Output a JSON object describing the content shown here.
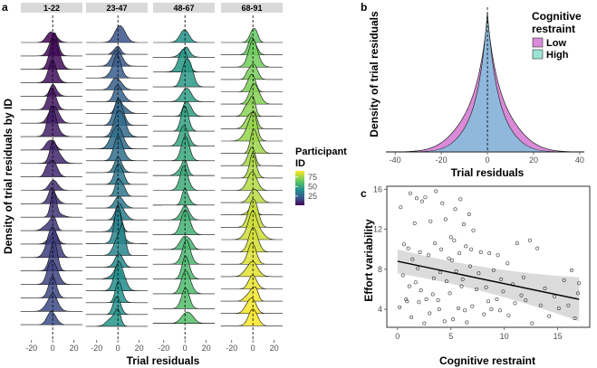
{
  "chart_data": [
    {
      "panel": "a",
      "type": "ridgeline",
      "facets": [
        "1-22",
        "23-47",
        "48-67",
        "68-91"
      ],
      "xlabel": "Trial residuals",
      "ylabel": "Density of trial residuals by ID",
      "xticks": [
        -20,
        0,
        20
      ],
      "xlim": [
        -30,
        28
      ],
      "ridges_per_facet": [
        22,
        25,
        20,
        24
      ],
      "ref_line": 0,
      "colorbar": {
        "title": "Participant ID",
        "ticks": [
          25,
          50,
          75
        ],
        "range": [
          1,
          91
        ],
        "colors": [
          "#440154",
          "#46327e",
          "#365c8d",
          "#277f8e",
          "#1fa187",
          "#4ac16d",
          "#a0da39",
          "#fde725"
        ]
      }
    },
    {
      "panel": "b",
      "type": "density",
      "xlabel": "Trial residuals",
      "ylabel": "Density of trial residuals",
      "xticks": [
        -40,
        -20,
        0,
        20,
        40
      ],
      "xlim": [
        -44,
        42
      ],
      "ref_line": 0,
      "legend_title": "Cognitive restraint",
      "series": [
        {
          "name": "Low",
          "color": "#d98ad8",
          "center": 0,
          "scale": 5.6,
          "tail_weight": 0.35,
          "tail_scale": 11,
          "peak": 0.96
        },
        {
          "name": "High",
          "color": "#9be3d4",
          "center": 0,
          "scale": 5.0,
          "tail_weight": 0.25,
          "tail_scale": 9,
          "peak": 1.0
        }
      ]
    },
    {
      "panel": "c",
      "type": "scatter",
      "xlabel": "Cognitive restraint",
      "ylabel": "Effort variability",
      "xticks": [
        0,
        5,
        10,
        15
      ],
      "yticks": [
        4,
        8,
        12,
        16
      ],
      "xlim": [
        -1,
        18
      ],
      "ylim": [
        2.2,
        16.3
      ],
      "fit": {
        "x": [
          0,
          17
        ],
        "y": [
          8.8,
          5.0
        ],
        "ci_low_at": [
          7.6,
          2.8
        ],
        "ci_high_at": [
          10.0,
          7.2
        ]
      },
      "points": [
        [
          0.3,
          14.2
        ],
        [
          1.2,
          15.6
        ],
        [
          1.6,
          12.6
        ],
        [
          1.8,
          15.1
        ],
        [
          2.3,
          14.8
        ],
        [
          2.6,
          15.2
        ],
        [
          3.1,
          12.8
        ],
        [
          3.6,
          15.8
        ],
        [
          4.2,
          14.6
        ],
        [
          4.5,
          13.0
        ],
        [
          5.0,
          11.2
        ],
        [
          5.4,
          14.0
        ],
        [
          5.9,
          15.0
        ],
        [
          6.2,
          12.5
        ],
        [
          6.7,
          13.5
        ],
        [
          7.1,
          11.9
        ],
        [
          0.6,
          10.5
        ],
        [
          1.0,
          10.1
        ],
        [
          1.4,
          9.0
        ],
        [
          2.1,
          9.7
        ],
        [
          2.9,
          9.4
        ],
        [
          3.5,
          10.6
        ],
        [
          4.1,
          10.0
        ],
        [
          4.8,
          9.1
        ],
        [
          5.3,
          10.9
        ],
        [
          5.8,
          9.6
        ],
        [
          6.4,
          10.3
        ],
        [
          6.9,
          10.0
        ],
        [
          7.8,
          9.7
        ],
        [
          8.6,
          9.6
        ],
        [
          9.4,
          9.4
        ],
        [
          10.3,
          8.6
        ],
        [
          11.2,
          10.6
        ],
        [
          12.4,
          10.9
        ],
        [
          13.1,
          10.1
        ],
        [
          0.2,
          4.2
        ],
        [
          0.8,
          5.0
        ],
        [
          1.3,
          3.2
        ],
        [
          1.7,
          6.7
        ],
        [
          2.0,
          4.7
        ],
        [
          2.5,
          2.6
        ],
        [
          3.0,
          3.6
        ],
        [
          3.3,
          5.5
        ],
        [
          3.9,
          4.0
        ],
        [
          4.4,
          2.8
        ],
        [
          4.9,
          5.6
        ],
        [
          5.2,
          3.0
        ],
        [
          5.7,
          4.1
        ],
        [
          6.0,
          6.3
        ],
        [
          6.5,
          2.7
        ],
        [
          7.0,
          4.3
        ],
        [
          7.4,
          6.0
        ],
        [
          8.1,
          3.5
        ],
        [
          8.8,
          4.0
        ],
        [
          9.3,
          5.0
        ],
        [
          9.9,
          5.8
        ],
        [
          10.4,
          3.4
        ],
        [
          11.0,
          4.6
        ],
        [
          11.6,
          5.4
        ],
        [
          12.6,
          2.6
        ],
        [
          13.4,
          4.4
        ],
        [
          14.2,
          3.3
        ],
        [
          15.1,
          4.1
        ],
        [
          16.3,
          7.9
        ],
        [
          16.6,
          3.1
        ],
        [
          17.0,
          6.6
        ],
        [
          0.5,
          7.4
        ],
        [
          1.1,
          6.3
        ],
        [
          1.9,
          8.1
        ],
        [
          2.7,
          5.0
        ],
        [
          3.4,
          7.1
        ],
        [
          4.0,
          7.7
        ],
        [
          4.6,
          6.8
        ],
        [
          5.5,
          7.8
        ],
        [
          6.1,
          7.0
        ],
        [
          6.8,
          8.3
        ],
        [
          7.6,
          7.6
        ],
        [
          8.3,
          6.2
        ],
        [
          9.0,
          7.9
        ],
        [
          9.7,
          7.0
        ],
        [
          10.8,
          6.5
        ],
        [
          11.8,
          7.2
        ],
        [
          13.8,
          6.1
        ],
        [
          15.6,
          6.9
        ],
        [
          16.9,
          5.6
        ],
        [
          0.9,
          4.8
        ],
        [
          2.2,
          5.9
        ],
        [
          3.8,
          4.9
        ],
        [
          5.1,
          8.9
        ],
        [
          6.3,
          3.9
        ],
        [
          8.5,
          4.8
        ],
        [
          9.6,
          3.9
        ],
        [
          12.0,
          4.9
        ],
        [
          14.7,
          5.3
        ],
        [
          16.0,
          4.4
        ]
      ]
    }
  ],
  "labels": {
    "panel_a": "a",
    "panel_b": "b",
    "panel_c": "c",
    "a_xlabel": "Trial residuals",
    "a_ylabel": "Density of trial residuals by ID",
    "cb_title_1": "Participant",
    "cb_title_2": "ID",
    "b_xlabel": "Trial residuals",
    "b_ylabel": "Density of trial residuals",
    "legend_title_1": "Cognitive",
    "legend_title_2": "restraint",
    "legend_low": "Low",
    "legend_high": "High",
    "c_xlabel": "Cognitive restraint",
    "c_ylabel": "Effort variability"
  }
}
